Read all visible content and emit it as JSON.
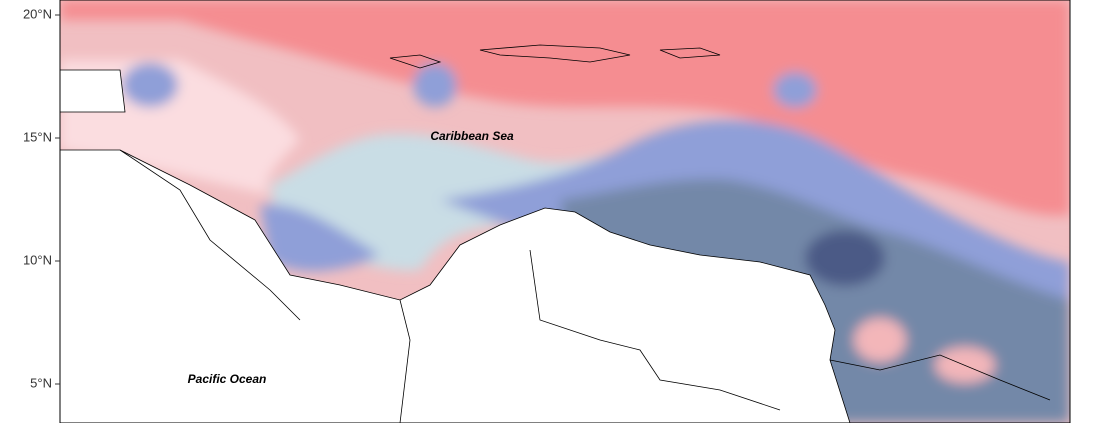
{
  "map": {
    "axis_labels": [
      "20°N",
      "15°N",
      "10°N",
      "5°N"
    ],
    "places": [
      "Caribbean Sea",
      "Pacific Ocean"
    ]
  }
}
